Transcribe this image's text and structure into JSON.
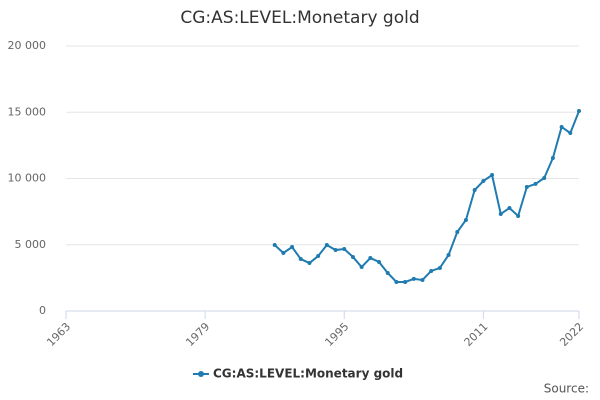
{
  "chart_data": {
    "type": "line",
    "title": "CG:AS:LEVEL:Monetary gold",
    "x": [
      1987,
      1988,
      1989,
      1990,
      1991,
      1992,
      1993,
      1994,
      1995,
      1996,
      1997,
      1998,
      1999,
      2000,
      2001,
      2002,
      2003,
      2004,
      2005,
      2006,
      2007,
      2008,
      2009,
      2010,
      2011,
      2012,
      2013,
      2014,
      2015,
      2016,
      2017,
      2018,
      2019,
      2020,
      2021,
      2022
    ],
    "series": [
      {
        "name": "CG:AS:LEVEL:Monetary gold",
        "color": "#1f7bb0",
        "values": [
          4980,
          4380,
          4830,
          3920,
          3620,
          4150,
          4980,
          4600,
          4680,
          4080,
          3320,
          4000,
          3700,
          2870,
          2190,
          2190,
          2420,
          2340,
          3020,
          3250,
          4230,
          5960,
          6870,
          9130,
          9810,
          10260,
          7320,
          7770,
          7170,
          9360,
          9590,
          10040,
          11550,
          13890,
          13430,
          15090
        ]
      }
    ],
    "xlim": [
      1963,
      2022
    ],
    "xticks": [
      1963,
      1979,
      1995,
      2011,
      2022
    ],
    "ylim": [
      0,
      20000
    ],
    "yticks": [
      0,
      {
        "value": 5000,
        "label": "5 000"
      },
      {
        "value": 10000,
        "label": "10 000"
      },
      {
        "value": 15000,
        "label": "15 000"
      },
      {
        "value": 20000,
        "label": "20 000"
      }
    ],
    "grid": true,
    "legend": "bottom",
    "source": "Source:"
  }
}
